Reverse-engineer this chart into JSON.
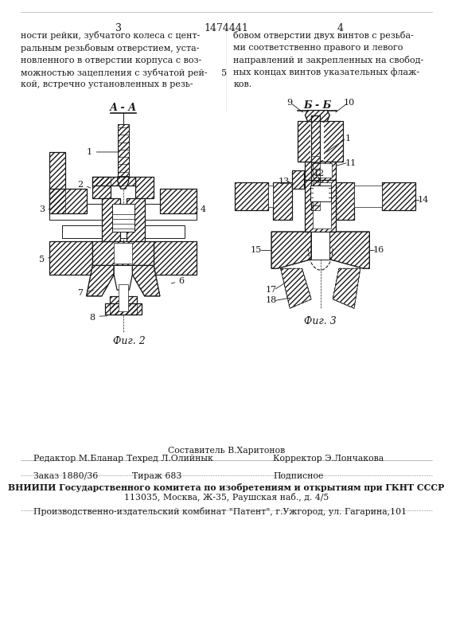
{
  "page_number_left": "3",
  "page_number_center": "1474441",
  "page_number_right": "4",
  "text_left_col": "ности рейки, зубчатого колеса с цент-\nральным резьбовым отверстием, уста-\nновленного в отверстии корпуса с воз-\nможностью зацепления с зубчатой рей-\nкой, встречно установленных в резь-",
  "text_right_col": "бовом отверстии двух винтов с резьба-\nми соответственно правого и левого\nнаправлений и закрепленных на свобод-\nных концах винтов указательных флаж-\nков.",
  "fig2_label": "А - А",
  "fig3_label": "Б - Б",
  "fig2_caption": "Фиг. 2",
  "fig3_caption": "Фиг. 3",
  "footer_line0": "Составитель В.Харитонов",
  "footer_line1_col1": "Редактор М.Бланар",
  "footer_line1_col2": "Техред Л.Олийнык",
  "footer_line1_col3": "Корректор Э.Лончакова",
  "footer_line2_col1": "Заказ 1880/36",
  "footer_line2_col2": "Тираж 683",
  "footer_line2_col3": "Подписное",
  "footer_vnipi": "ВНИИПИ Государственного комитета по изобретениям и открытиям при ГКНТ СССР",
  "footer_address": "113035, Москва, Ж-35, Раушская наб., д. 4/5",
  "footer_factory": "Производственно-издательский комбинат \"Патент\", г.Ужгород, ул. Гагарина,101",
  "bg_color": "#ffffff",
  "line_color": "#1a1a1a",
  "text_color": "#1a1a1a"
}
